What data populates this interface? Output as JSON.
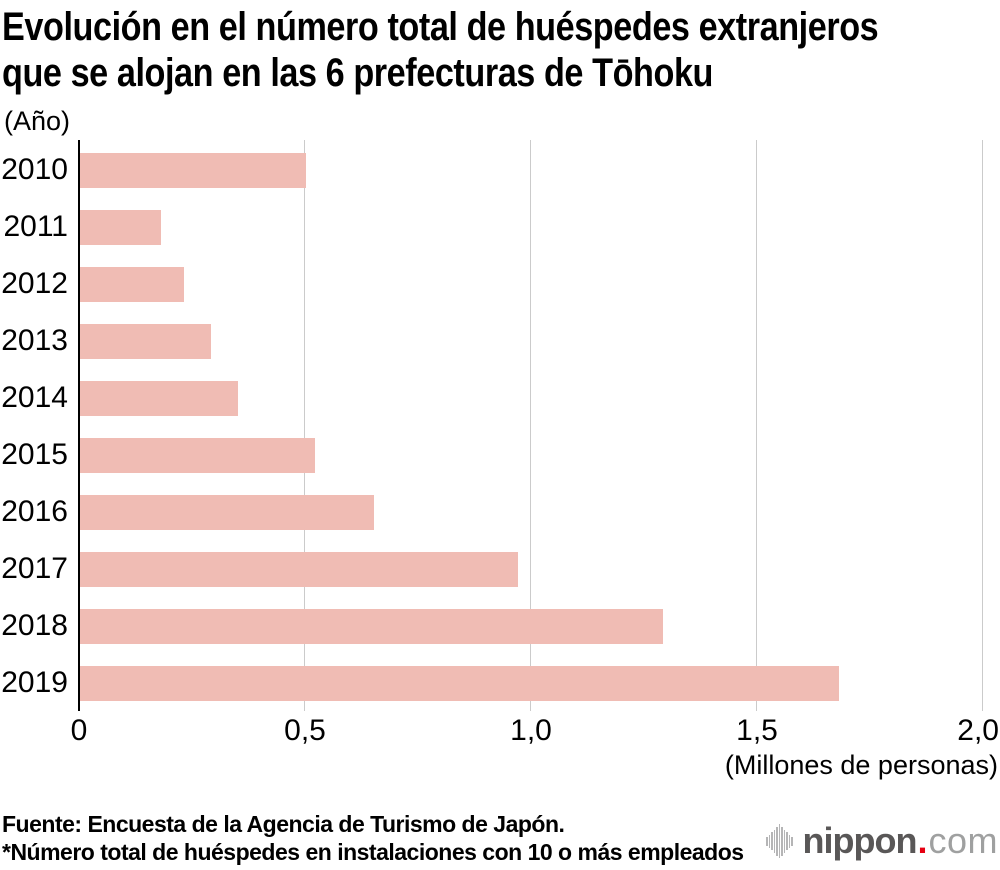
{
  "title": {
    "line1": "Evolución en el número total de huéspedes extranjeros",
    "line2": "que se alojan en las 6 prefecturas de Tōhoku"
  },
  "chart_data": {
    "type": "bar",
    "orientation": "horizontal",
    "title": "Evolución en el número total de huéspedes extranjeros que se alojan en las 6 prefecturas de Tōhoku",
    "y_axis_unit_label": "(Año)",
    "x_axis_unit_label": "(Millones de personas)",
    "categories": [
      "2010",
      "2011",
      "2012",
      "2013",
      "2014",
      "2015",
      "2016",
      "2017",
      "2018",
      "2019"
    ],
    "values": [
      0.5,
      0.18,
      0.23,
      0.29,
      0.35,
      0.52,
      0.65,
      0.97,
      1.29,
      1.68
    ],
    "xlim": [
      0,
      2.0
    ],
    "x_ticks": [
      {
        "label": "0",
        "value": 0
      },
      {
        "label": "0,5",
        "value": 0.5
      },
      {
        "label": "1,0",
        "value": 1.0
      },
      {
        "label": "1,5",
        "value": 1.5
      },
      {
        "label": "2,0",
        "value": 2.0
      }
    ],
    "gridlines_at": [
      0.5,
      1.0,
      1.5,
      2.0
    ],
    "grid": "vertical",
    "legend": "none",
    "bar_color": "#f0bcb4",
    "gridline_color": "#cbcbcb",
    "axis_color": "#000000"
  },
  "footer": {
    "source": "Fuente: Encuesta de la Agencia de Turismo de Japón.",
    "note": "*Número total de huéspedes en instalaciones con 10 o más empleados"
  },
  "logo": {
    "wordmark": "nippon",
    "separator": ".",
    "tld": "com",
    "wordmark_color": "#595757",
    "dot_color": "#e60012",
    "tld_color": "#9fa0a0",
    "icon_color": "#b5b5b6",
    "icon_bar_heights": [
      9,
      13,
      18,
      23,
      29,
      34,
      29,
      23,
      18,
      13,
      9
    ]
  }
}
